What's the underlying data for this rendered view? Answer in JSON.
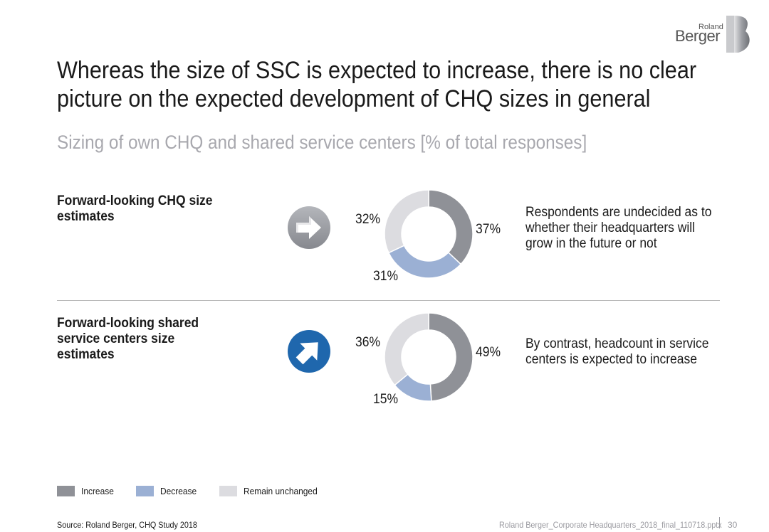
{
  "logo": {
    "small": "Roland",
    "big": "Berger"
  },
  "title": {
    "line1": "Whereas the size of SSC is expected to increase, there is no clear",
    "line2": "picture on the expected development of CHQ sizes in general"
  },
  "subtitle": "Sizing of own CHQ and shared service centers [% of total responses]",
  "colors": {
    "increase": "#8f9197",
    "decrease": "#9bb0d4",
    "unchanged": "#dcdce0",
    "neutral_icon": "#9a9ca2",
    "up_icon": "#1f67ad"
  },
  "rows": [
    {
      "label_lines": [
        "Forward-looking CHQ size",
        "estimates"
      ],
      "icon": "arrow-right-icon",
      "description_lines": [
        "Respondents are undecided as to",
        "whether their headquarters will",
        "grow in the future or not"
      ]
    },
    {
      "label_lines": [
        "Forward-looking shared",
        "service centers size",
        "estimates"
      ],
      "icon": "arrow-up-right-icon",
      "description_lines": [
        "By contrast, headcount in service",
        "centers is expected to increase"
      ]
    }
  ],
  "chart_data": [
    {
      "type": "pie",
      "title": "Forward-looking CHQ size estimates",
      "categories": [
        "Increase",
        "Decrease",
        "Remain unchanged"
      ],
      "values": [
        37,
        31,
        32
      ],
      "labels": [
        "37%",
        "31%",
        "32%"
      ]
    },
    {
      "type": "pie",
      "title": "Forward-looking shared service centers size estimates",
      "categories": [
        "Increase",
        "Decrease",
        "Remain unchanged"
      ],
      "values": [
        49,
        15,
        36
      ],
      "labels": [
        "49%",
        "15%",
        "36%"
      ]
    }
  ],
  "legend": [
    {
      "label": "Increase",
      "color": "#8f9197"
    },
    {
      "label": "Decrease",
      "color": "#9bb0d4"
    },
    {
      "label": "Remain unchanged",
      "color": "#dcdce0"
    }
  ],
  "footer": {
    "source": "Source: Roland Berger, CHQ Study 2018",
    "file": "Roland Berger_Corporate Headquarters_2018_final_110718.pptx",
    "page": "30"
  }
}
